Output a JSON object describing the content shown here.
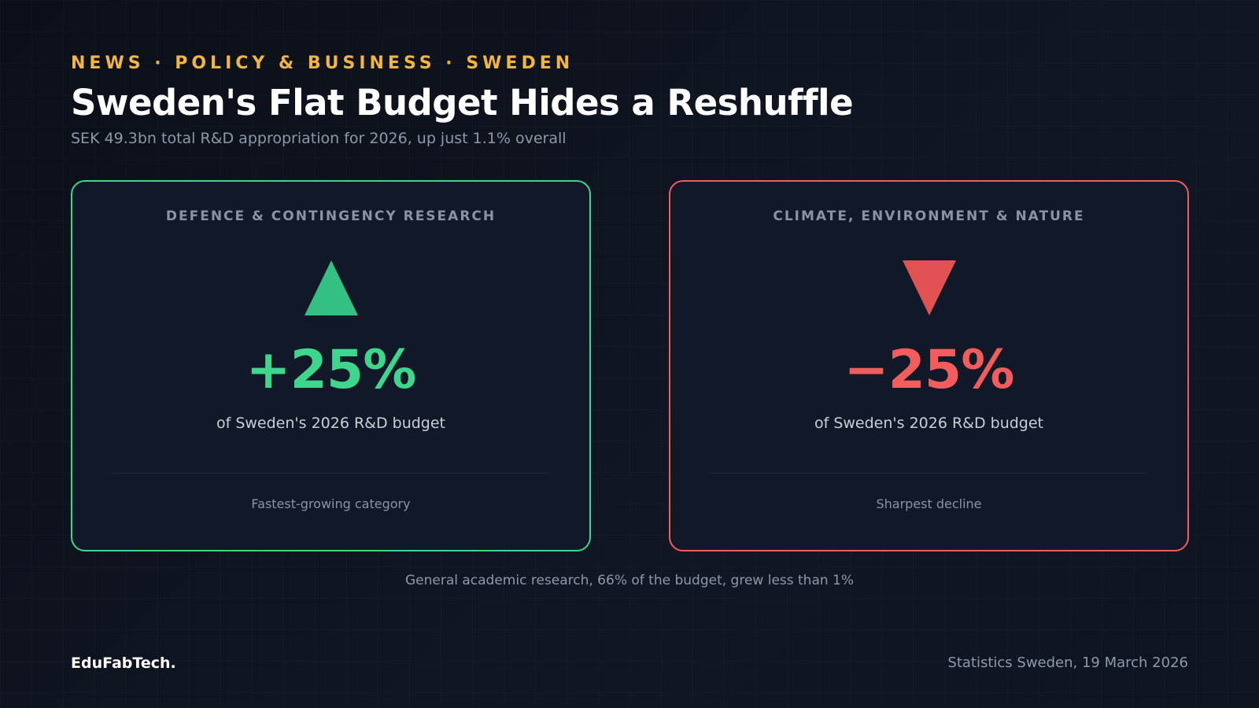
{
  "header": {
    "kicker": "NEWS · POLICY & BUSINESS · SWEDEN",
    "title": "Sweden's Flat Budget Hides a Reshuffle",
    "subtitle": "SEK 49.3bn total R&D appropriation for 2026, up just 1.1% overall"
  },
  "cards": [
    {
      "title": "DEFENCE & CONTINGENCY RESEARCH",
      "direction_icon": "triangle-up-icon",
      "value": "+25%",
      "description": "of Sweden's 2026 R&D budget",
      "note": "Fastest-growing category",
      "color": "#3dd68c"
    },
    {
      "title": "CLIMATE, ENVIRONMENT & NATURE",
      "direction_icon": "triangle-down-icon",
      "value": "−25%",
      "description": "of Sweden's 2026 R&D budget",
      "note": "Sharpest decline",
      "color": "#f25c5c"
    }
  ],
  "footnote": "General academic research, 66% of the budget, grew less than 1%",
  "footer": {
    "brand": "EduFabTech.",
    "source": "Statistics Sweden, 19 March 2026"
  },
  "colors": {
    "accent": "#f2b541",
    "background": "#0c1119",
    "positive": "#3dd68c",
    "negative": "#f25c5c"
  }
}
